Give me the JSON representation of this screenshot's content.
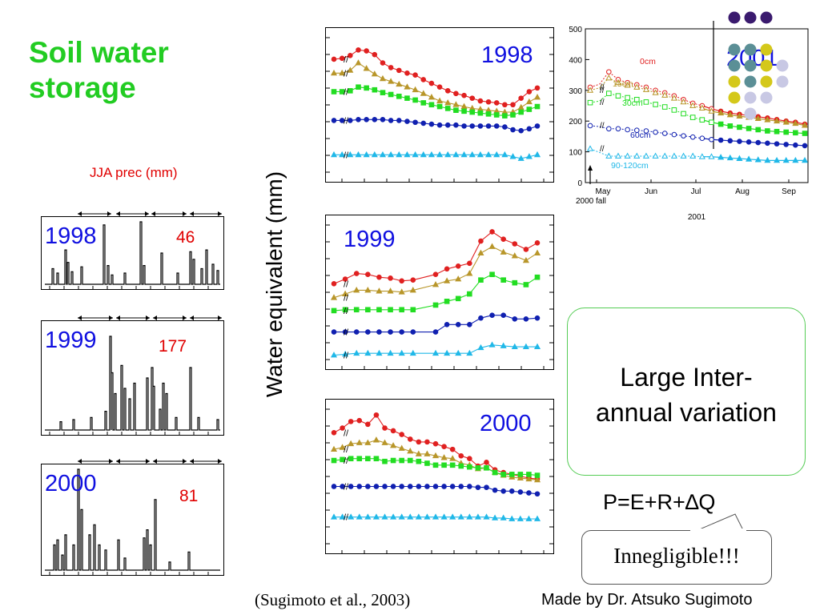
{
  "title": "Soil water\nstorage",
  "precip_label": "JJA prec  (mm)",
  "y_axis_label": "Water equivalent (mm)",
  "precip_panels": [
    {
      "year": "1998",
      "value": "46"
    },
    {
      "year": "1999",
      "value": "177"
    },
    {
      "year": "2000",
      "value": "81"
    }
  ],
  "box_text": "Large Inter-\nannual variation",
  "equation": "P=E+R+∆Q",
  "callout": "Innegligible!!!",
  "citation": "(Sugimoto et al., 2003)",
  "credit": "Made by Dr. Atsuko Sugimoto",
  "colors": {
    "title": "#22cc22",
    "year": "#1010e0",
    "precip_value": "#e00000",
    "depth_0cm": "#e02020",
    "depth_15cm": "#b8962a",
    "depth_30cm": "#22dd22",
    "depth_60cm": "#1020b0",
    "depth_90_120cm": "#20b8e8"
  },
  "chart_data": [
    {
      "type": "line",
      "panel": "1998",
      "title": "1998",
      "series": [
        {
          "name": "0cm",
          "values": [
            270,
            272,
            278,
            290,
            288,
            280,
            262,
            252,
            246,
            240,
            236,
            226,
            218,
            210,
            202,
            196,
            192,
            186,
            180,
            178,
            176,
            172,
            172,
            186,
            200,
            208
          ]
        },
        {
          "name": "15cm",
          "values": [
            240,
            240,
            246,
            262,
            250,
            238,
            228,
            222,
            216,
            210,
            204,
            196,
            188,
            180,
            176,
            172,
            168,
            164,
            162,
            160,
            158,
            156,
            156,
            166,
            178,
            188
          ]
        },
        {
          "name": "30cm",
          "values": [
            200,
            200,
            202,
            210,
            208,
            204,
            198,
            194,
            190,
            186,
            182,
            176,
            172,
            168,
            164,
            160,
            158,
            156,
            154,
            152,
            150,
            148,
            150,
            156,
            162,
            168
          ]
        },
        {
          "name": "60cm",
          "values": [
            138,
            138,
            138,
            140,
            140,
            140,
            140,
            138,
            138,
            136,
            134,
            132,
            130,
            128,
            128,
            128,
            126,
            126,
            126,
            126,
            126,
            124,
            118,
            116,
            120,
            126
          ]
        },
        {
          "name": "90-120cm",
          "values": [
            64,
            64,
            64,
            64,
            64,
            64,
            64,
            64,
            64,
            64,
            64,
            64,
            64,
            64,
            64,
            64,
            64,
            64,
            64,
            64,
            64,
            64,
            60,
            56,
            60,
            64
          ]
        }
      ]
    },
    {
      "type": "line",
      "panel": "1999",
      "title": "1999",
      "series": [
        {
          "name": "0cm",
          "x": [
            1,
            2,
            3,
            4,
            5,
            6,
            7,
            8,
            10,
            11,
            12,
            13,
            14,
            15,
            16,
            17,
            18,
            19
          ],
          "values": [
            190,
            200,
            212,
            210,
            204,
            202,
            196,
            198,
            210,
            222,
            228,
            234,
            282,
            302,
            286,
            276,
            264,
            278
          ]
        },
        {
          "name": "15cm",
          "x": [
            1,
            2,
            3,
            4,
            5,
            6,
            7,
            8,
            10,
            11,
            12,
            13,
            14,
            15,
            16,
            17,
            18,
            19
          ],
          "values": [
            160,
            168,
            176,
            176,
            174,
            174,
            172,
            176,
            188,
            196,
            200,
            212,
            256,
            270,
            258,
            250,
            240,
            256
          ]
        },
        {
          "name": "30cm",
          "x": [
            1,
            2,
            3,
            4,
            5,
            6,
            7,
            8,
            10,
            11,
            12,
            13,
            14,
            15,
            16,
            17,
            18,
            19
          ],
          "values": [
            132,
            134,
            134,
            134,
            134,
            134,
            134,
            134,
            144,
            152,
            158,
            168,
            198,
            210,
            198,
            192,
            188,
            204
          ]
        },
        {
          "name": "60cm",
          "x": [
            1,
            2,
            3,
            4,
            5,
            6,
            7,
            8,
            10,
            11,
            12,
            13,
            14,
            15,
            16,
            17,
            18,
            19
          ],
          "values": [
            86,
            86,
            86,
            86,
            86,
            86,
            86,
            86,
            86,
            102,
            102,
            102,
            116,
            122,
            122,
            114,
            114,
            116
          ]
        },
        {
          "name": "90-120cm",
          "x": [
            1,
            2,
            3,
            4,
            5,
            6,
            7,
            8,
            10,
            11,
            12,
            13,
            14,
            15,
            16,
            17,
            18,
            19
          ],
          "values": [
            36,
            38,
            40,
            40,
            40,
            40,
            40,
            40,
            40,
            40,
            40,
            40,
            52,
            58,
            56,
            54,
            54,
            54
          ]
        }
      ]
    },
    {
      "type": "line",
      "panel": "2000",
      "title": "2000",
      "series": [
        {
          "name": "0cm",
          "values": [
            266,
            276,
            290,
            292,
            284,
            304,
            276,
            270,
            262,
            252,
            246,
            246,
            242,
            236,
            230,
            216,
            210,
            194,
            202,
            186,
            180,
            176,
            172,
            168,
            166
          ]
        },
        {
          "name": "15cm",
          "values": [
            230,
            234,
            242,
            244,
            244,
            250,
            244,
            238,
            232,
            226,
            220,
            220,
            216,
            212,
            210,
            200,
            196,
            188,
            190,
            180,
            174,
            170,
            168,
            166,
            164
          ]
        },
        {
          "name": "30cm",
          "values": [
            206,
            208,
            210,
            210,
            210,
            210,
            204,
            206,
            206,
            206,
            204,
            200,
            196,
            196,
            196,
            194,
            192,
            190,
            190,
            180,
            176,
            176,
            176,
            176,
            174
          ]
        },
        {
          "name": "60cm",
          "values": [
            150,
            150,
            150,
            150,
            150,
            150,
            150,
            150,
            150,
            150,
            150,
            150,
            150,
            150,
            150,
            150,
            150,
            148,
            148,
            142,
            140,
            140,
            138,
            136,
            134
          ]
        },
        {
          "name": "90-120cm",
          "values": [
            84,
            84,
            84,
            84,
            84,
            84,
            84,
            84,
            84,
            84,
            84,
            84,
            84,
            84,
            84,
            84,
            84,
            84,
            84,
            82,
            82,
            80,
            80,
            80,
            80
          ]
        }
      ]
    },
    {
      "type": "line",
      "panel": "2001",
      "title": "2001",
      "x_year_label": "2001",
      "y_ticks": [
        0,
        100,
        200,
        300,
        400,
        500
      ],
      "ylim": [
        0,
        500
      ],
      "x_tick_labels": [
        "May",
        "Jun",
        "Jul",
        "Aug",
        "Sep"
      ],
      "annotation": "2000 fall",
      "series_labels": [
        "0cm",
        "15cm",
        "30cm",
        "60cm",
        "90-120cm"
      ],
      "series": [
        {
          "name": "0cm",
          "values": [
            310,
            320,
            360,
            335,
            325,
            318,
            310,
            300,
            292,
            282,
            270,
            258,
            250,
            240,
            232,
            226,
            222,
            218,
            214,
            210,
            205,
            200,
            196,
            190
          ]
        },
        {
          "name": "15cm",
          "values": [
            300,
            308,
            340,
            325,
            316,
            310,
            302,
            292,
            284,
            274,
            262,
            250,
            242,
            232,
            226,
            220,
            216,
            212,
            208,
            204,
            200,
            196,
            192,
            186
          ]
        },
        {
          "name": "30cm",
          "values": [
            260,
            265,
            290,
            282,
            276,
            270,
            262,
            254,
            246,
            236,
            224,
            212,
            204,
            196,
            190,
            184,
            180,
            176,
            172,
            168,
            166,
            164,
            162,
            160
          ]
        },
        {
          "name": "60cm",
          "values": [
            185,
            182,
            175,
            175,
            172,
            170,
            168,
            164,
            160,
            156,
            152,
            148,
            144,
            140,
            138,
            136,
            134,
            132,
            130,
            128,
            126,
            124,
            122,
            120
          ]
        },
        {
          "name": "90-120cm",
          "values": [
            110,
            98,
            86,
            86,
            86,
            86,
            86,
            86,
            86,
            86,
            86,
            86,
            84,
            84,
            82,
            80,
            78,
            76,
            74,
            72,
            72,
            72,
            72,
            72
          ]
        }
      ]
    }
  ]
}
